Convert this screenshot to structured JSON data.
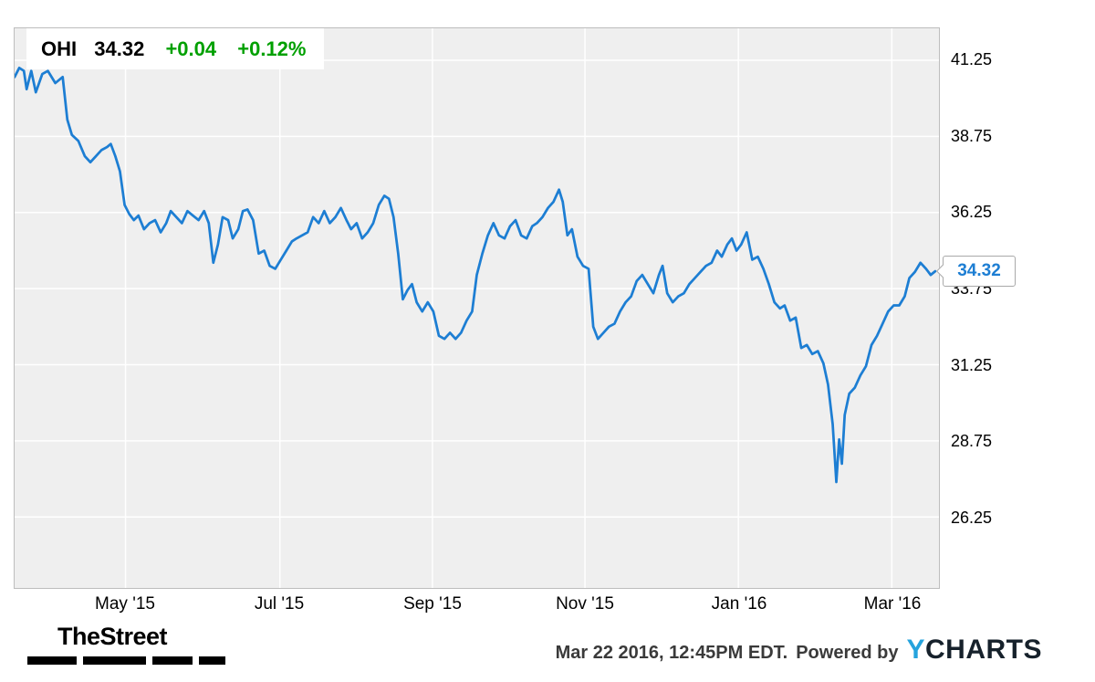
{
  "legend": {
    "symbol": "OHI",
    "price": "34.32",
    "change": "+0.04",
    "change_pct": "+0.12%"
  },
  "price_flag": {
    "label": "34.32"
  },
  "footer": {
    "brand": "TheStreet",
    "timestamp": "Mar 22 2016, 12:45PM EDT.",
    "powered_by": "Powered by",
    "ycharts_y": "Y",
    "ycharts_rest": "CHARTS"
  },
  "colors": {
    "line": "#1d7ed3",
    "gain": "#00a000",
    "plot_bg": "#efefef",
    "grid": "#ffffff",
    "plot_border": "#bdbdbd",
    "flag_border": "#a9a9a9",
    "ycharts_blue": "#25a3dd"
  },
  "chart_data": {
    "type": "line",
    "title": "OHI 34.32 +0.04 +0.12%",
    "xlabel": "",
    "ylabel": "",
    "legend_position": "top-left",
    "grid": true,
    "y_ticks": [
      41.25,
      38.75,
      36.25,
      33.75,
      31.25,
      28.75,
      26.25
    ],
    "y_plot_range": [
      23.92,
      42.3
    ],
    "x_ticks": [
      {
        "label": "May '15",
        "t": 0.12
      },
      {
        "label": "Jul '15",
        "t": 0.287
      },
      {
        "label": "Sep '15",
        "t": 0.452
      },
      {
        "label": "Nov '15",
        "t": 0.617
      },
      {
        "label": "Jan '16",
        "t": 0.783
      },
      {
        "label": "Mar '16",
        "t": 0.949
      }
    ],
    "last_value": 34.32,
    "series": [
      {
        "name": "OHI",
        "points": [
          [
            0.0,
            40.7
          ],
          [
            0.005,
            41.0
          ],
          [
            0.01,
            40.9
          ],
          [
            0.013,
            40.3
          ],
          [
            0.018,
            40.9
          ],
          [
            0.023,
            40.2
          ],
          [
            0.03,
            40.8
          ],
          [
            0.036,
            40.9
          ],
          [
            0.044,
            40.5
          ],
          [
            0.052,
            40.7
          ],
          [
            0.057,
            39.3
          ],
          [
            0.062,
            38.8
          ],
          [
            0.069,
            38.6
          ],
          [
            0.076,
            38.1
          ],
          [
            0.082,
            37.9
          ],
          [
            0.088,
            38.1
          ],
          [
            0.094,
            38.3
          ],
          [
            0.1,
            38.4
          ],
          [
            0.104,
            38.5
          ],
          [
            0.109,
            38.1
          ],
          [
            0.114,
            37.6
          ],
          [
            0.119,
            36.5
          ],
          [
            0.124,
            36.2
          ],
          [
            0.129,
            36.0
          ],
          [
            0.134,
            36.15
          ],
          [
            0.14,
            35.7
          ],
          [
            0.146,
            35.9
          ],
          [
            0.152,
            36.0
          ],
          [
            0.158,
            35.6
          ],
          [
            0.164,
            35.9
          ],
          [
            0.169,
            36.3
          ],
          [
            0.175,
            36.1
          ],
          [
            0.181,
            35.9
          ],
          [
            0.187,
            36.3
          ],
          [
            0.193,
            36.15
          ],
          [
            0.199,
            36.0
          ],
          [
            0.205,
            36.3
          ],
          [
            0.21,
            35.9
          ],
          [
            0.215,
            34.6
          ],
          [
            0.22,
            35.2
          ],
          [
            0.225,
            36.1
          ],
          [
            0.231,
            36.0
          ],
          [
            0.236,
            35.4
          ],
          [
            0.242,
            35.7
          ],
          [
            0.247,
            36.3
          ],
          [
            0.252,
            36.35
          ],
          [
            0.258,
            36.0
          ],
          [
            0.264,
            34.9
          ],
          [
            0.27,
            35.0
          ],
          [
            0.276,
            34.5
          ],
          [
            0.282,
            34.4
          ],
          [
            0.288,
            34.7
          ],
          [
            0.294,
            35.0
          ],
          [
            0.3,
            35.3
          ],
          [
            0.305,
            35.4
          ],
          [
            0.311,
            35.5
          ],
          [
            0.317,
            35.6
          ],
          [
            0.323,
            36.1
          ],
          [
            0.329,
            35.9
          ],
          [
            0.335,
            36.3
          ],
          [
            0.341,
            35.9
          ],
          [
            0.347,
            36.1
          ],
          [
            0.353,
            36.4
          ],
          [
            0.359,
            36.0
          ],
          [
            0.364,
            35.7
          ],
          [
            0.37,
            35.9
          ],
          [
            0.376,
            35.4
          ],
          [
            0.382,
            35.6
          ],
          [
            0.388,
            35.9
          ],
          [
            0.394,
            36.5
          ],
          [
            0.4,
            36.8
          ],
          [
            0.405,
            36.7
          ],
          [
            0.41,
            36.1
          ],
          [
            0.415,
            34.9
          ],
          [
            0.42,
            33.4
          ],
          [
            0.425,
            33.7
          ],
          [
            0.43,
            33.9
          ],
          [
            0.435,
            33.3
          ],
          [
            0.441,
            33.0
          ],
          [
            0.447,
            33.3
          ],
          [
            0.453,
            33.0
          ],
          [
            0.459,
            32.2
          ],
          [
            0.465,
            32.1
          ],
          [
            0.471,
            32.3
          ],
          [
            0.477,
            32.1
          ],
          [
            0.483,
            32.3
          ],
          [
            0.489,
            32.7
          ],
          [
            0.495,
            33.0
          ],
          [
            0.5,
            34.2
          ],
          [
            0.506,
            34.9
          ],
          [
            0.512,
            35.5
          ],
          [
            0.518,
            35.9
          ],
          [
            0.524,
            35.5
          ],
          [
            0.53,
            35.4
          ],
          [
            0.536,
            35.8
          ],
          [
            0.542,
            36.0
          ],
          [
            0.548,
            35.5
          ],
          [
            0.554,
            35.4
          ],
          [
            0.56,
            35.8
          ],
          [
            0.565,
            35.9
          ],
          [
            0.571,
            36.1
          ],
          [
            0.577,
            36.4
          ],
          [
            0.583,
            36.6
          ],
          [
            0.589,
            37.0
          ],
          [
            0.593,
            36.6
          ],
          [
            0.598,
            35.5
          ],
          [
            0.603,
            35.7
          ],
          [
            0.609,
            34.8
          ],
          [
            0.615,
            34.5
          ],
          [
            0.621,
            34.4
          ],
          [
            0.626,
            32.5
          ],
          [
            0.631,
            32.1
          ],
          [
            0.637,
            32.3
          ],
          [
            0.643,
            32.5
          ],
          [
            0.649,
            32.6
          ],
          [
            0.655,
            33.0
          ],
          [
            0.661,
            33.3
          ],
          [
            0.667,
            33.5
          ],
          [
            0.673,
            34.0
          ],
          [
            0.679,
            34.2
          ],
          [
            0.685,
            33.9
          ],
          [
            0.691,
            33.6
          ],
          [
            0.697,
            34.2
          ],
          [
            0.701,
            34.5
          ],
          [
            0.706,
            33.6
          ],
          [
            0.712,
            33.3
          ],
          [
            0.718,
            33.5
          ],
          [
            0.724,
            33.6
          ],
          [
            0.73,
            33.9
          ],
          [
            0.736,
            34.1
          ],
          [
            0.742,
            34.3
          ],
          [
            0.748,
            34.5
          ],
          [
            0.754,
            34.6
          ],
          [
            0.76,
            35.0
          ],
          [
            0.765,
            34.8
          ],
          [
            0.771,
            35.2
          ],
          [
            0.776,
            35.4
          ],
          [
            0.781,
            35.0
          ],
          [
            0.786,
            35.2
          ],
          [
            0.792,
            35.6
          ],
          [
            0.798,
            34.7
          ],
          [
            0.804,
            34.8
          ],
          [
            0.81,
            34.4
          ],
          [
            0.816,
            33.9
          ],
          [
            0.822,
            33.3
          ],
          [
            0.828,
            33.1
          ],
          [
            0.833,
            33.2
          ],
          [
            0.839,
            32.7
          ],
          [
            0.845,
            32.8
          ],
          [
            0.851,
            31.8
          ],
          [
            0.857,
            31.9
          ],
          [
            0.863,
            31.6
          ],
          [
            0.869,
            31.7
          ],
          [
            0.875,
            31.3
          ],
          [
            0.88,
            30.6
          ],
          [
            0.885,
            29.3
          ],
          [
            0.889,
            27.4
          ],
          [
            0.892,
            28.8
          ],
          [
            0.895,
            28.0
          ],
          [
            0.898,
            29.6
          ],
          [
            0.903,
            30.3
          ],
          [
            0.909,
            30.5
          ],
          [
            0.915,
            30.9
          ],
          [
            0.921,
            31.2
          ],
          [
            0.927,
            31.9
          ],
          [
            0.933,
            32.2
          ],
          [
            0.939,
            32.6
          ],
          [
            0.945,
            33.0
          ],
          [
            0.951,
            33.2
          ],
          [
            0.957,
            33.2
          ],
          [
            0.963,
            33.5
          ],
          [
            0.968,
            34.1
          ],
          [
            0.974,
            34.3
          ],
          [
            0.98,
            34.6
          ],
          [
            0.986,
            34.4
          ],
          [
            0.991,
            34.2
          ],
          [
            0.996,
            34.32
          ]
        ]
      }
    ]
  }
}
